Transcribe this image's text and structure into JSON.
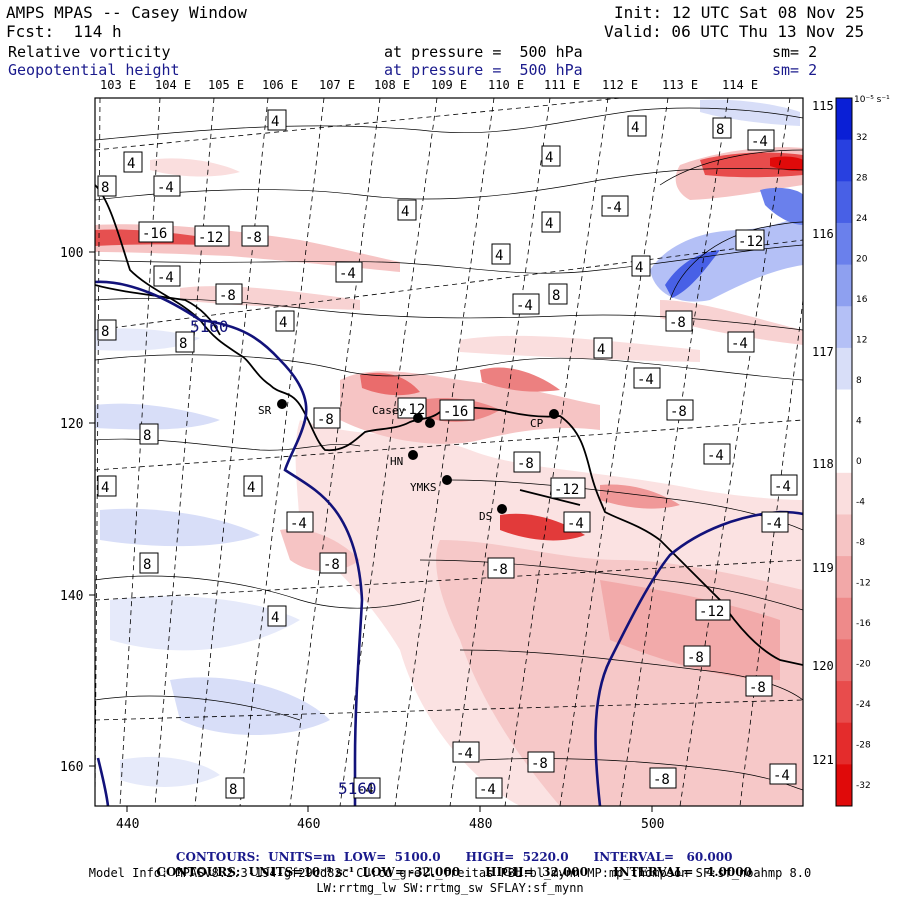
{
  "header": {
    "title": "AMPS MPAS -- Casey Window",
    "forecast": "Fcst:  114 h",
    "init": "Init: 12 UTC Sat 08 Nov 25",
    "valid": "Valid: 06 UTC Thu 13 Nov 25",
    "field1": "Relative vorticity",
    "field2": "Geopotential height",
    "pressure1": "at pressure =  500 hPa",
    "pressure2": "at pressure =  500 hPa",
    "sm1": "sm= 2",
    "sm2": "sm= 2"
  },
  "lon_labels_top": [
    "103 E",
    "104 E",
    "105 E",
    "106 E",
    "107 E",
    "108 E",
    "109 E",
    "110 E",
    "111 E",
    "112 E",
    "113 E",
    "114 E"
  ],
  "lat_labels_right": [
    "115 E",
    "116 E",
    "117 E",
    "118 E",
    "119 E",
    "120 E",
    "121 E"
  ],
  "x_ticks": [
    "440",
    "460",
    "480",
    "500"
  ],
  "y_ticks": [
    "100",
    "120",
    "140",
    "160"
  ],
  "colorbar": {
    "unit": "10⁻⁵ s⁻¹",
    "labels": [
      "32",
      "28",
      "24",
      "20",
      "16",
      "12",
      "8",
      "4",
      "0",
      "-4",
      "-8",
      "-12",
      "-16",
      "-20",
      "-24",
      "-28",
      "-32"
    ],
    "colors": [
      "#0a1fd6",
      "#2840e0",
      "#4860e6",
      "#6a80ec",
      "#8ea0f0",
      "#b4c0f6",
      "#d8def8",
      "#ffffff",
      "#ffffff",
      "#fadede",
      "#f6c4c4",
      "#f2a8a8",
      "#ee8a8a",
      "#ea6c6c",
      "#e84c4c",
      "#e42c2c",
      "#e00a0a"
    ]
  },
  "stations": [
    {
      "name": "SR"
    },
    {
      "name": "Casey"
    },
    {
      "name": "HN"
    },
    {
      "name": "YMKS"
    },
    {
      "name": "CP"
    },
    {
      "name": "DS"
    }
  ],
  "contour_labels": [
    "4",
    "8",
    "-4",
    "-8",
    "-12",
    "-16",
    "5160",
    "5160",
    "-12",
    "-16"
  ],
  "footer": {
    "line1_a": "CONTOURS:  UNITS=m  LOW=  5100.0",
    "line1_b": "HIGH=  5220.0",
    "line1_c": "INTERVAL=   60.000",
    "line2_a": "CONTOURS:  UNITS=10⁻⁵ s⁻¹  LOW= -32.000",
    "line2_b": "HIGH=  32.000",
    "line2_c": "INTERVAL=   4.0000",
    "line3": "Model Info: MPASv8.2.3-194-gf29cd82c CU:cu_grell_freitas PBL:bl_mynn MP:mp_thompson SF:sf_noahmp 8.0",
    "line4": "LW:rrtmg_lw SW:rrtmg_sw SFLAY:sf_mynn"
  }
}
